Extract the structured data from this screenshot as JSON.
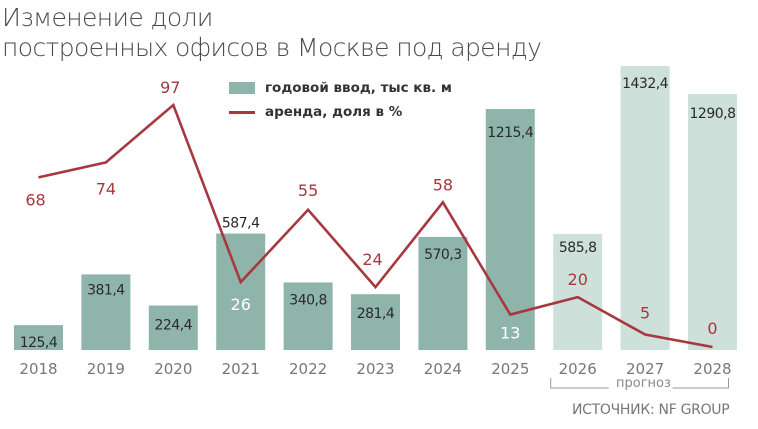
{
  "title": {
    "line1": "Изменение доли",
    "line2": "построенных офисов в Москве под аренду"
  },
  "legend": {
    "bar_label": "годовой ввод, тыс кв. м",
    "line_label": "аренда, доля в %"
  },
  "forecast_label": "прогноз",
  "source": "ИСТОЧНИК: NF GROUP",
  "colors": {
    "bar_actual": "#8fb5ab",
    "bar_forecast": "#cde0da",
    "line": "#a8383f",
    "line_label": "#a8383f",
    "bar_label": "#2a2a2a",
    "axis_label": "#777777"
  },
  "chart_data": {
    "type": "bar+line",
    "title": "Изменение доли построенных офисов в Москве под аренду",
    "xlabel": "",
    "ylabel": "",
    "categories": [
      "2018",
      "2019",
      "2020",
      "2021",
      "2022",
      "2023",
      "2024",
      "2025",
      "2026",
      "2027",
      "2028"
    ],
    "forecast_categories": [
      "2026",
      "2027",
      "2028"
    ],
    "series": [
      {
        "name": "годовой ввод, тыс кв. м",
        "type": "bar",
        "values": [
          125.4,
          381.4,
          224.4,
          587.4,
          340.8,
          281.4,
          570.3,
          1215.4,
          585.8,
          1432.4,
          1290.8
        ],
        "labels": [
          "125,4",
          "381,4",
          "224,4",
          "587,4",
          "340,8",
          "281,4",
          "570,3",
          "1215,4",
          "585,8",
          "1432,4",
          "1290,8"
        ]
      },
      {
        "name": "аренда, доля в %",
        "type": "line",
        "values": [
          68,
          74,
          97,
          26,
          55,
          24,
          58,
          13,
          20,
          5,
          0
        ],
        "labels": [
          "68",
          "74",
          "97",
          "26",
          "55",
          "24",
          "58",
          "13",
          "20",
          "5",
          "0"
        ]
      }
    ],
    "grid": false,
    "legend_position": "top-center",
    "annotations": [
      "прогноз (2026–2028)",
      "ИСТОЧНИК: NF GROUP"
    ]
  }
}
